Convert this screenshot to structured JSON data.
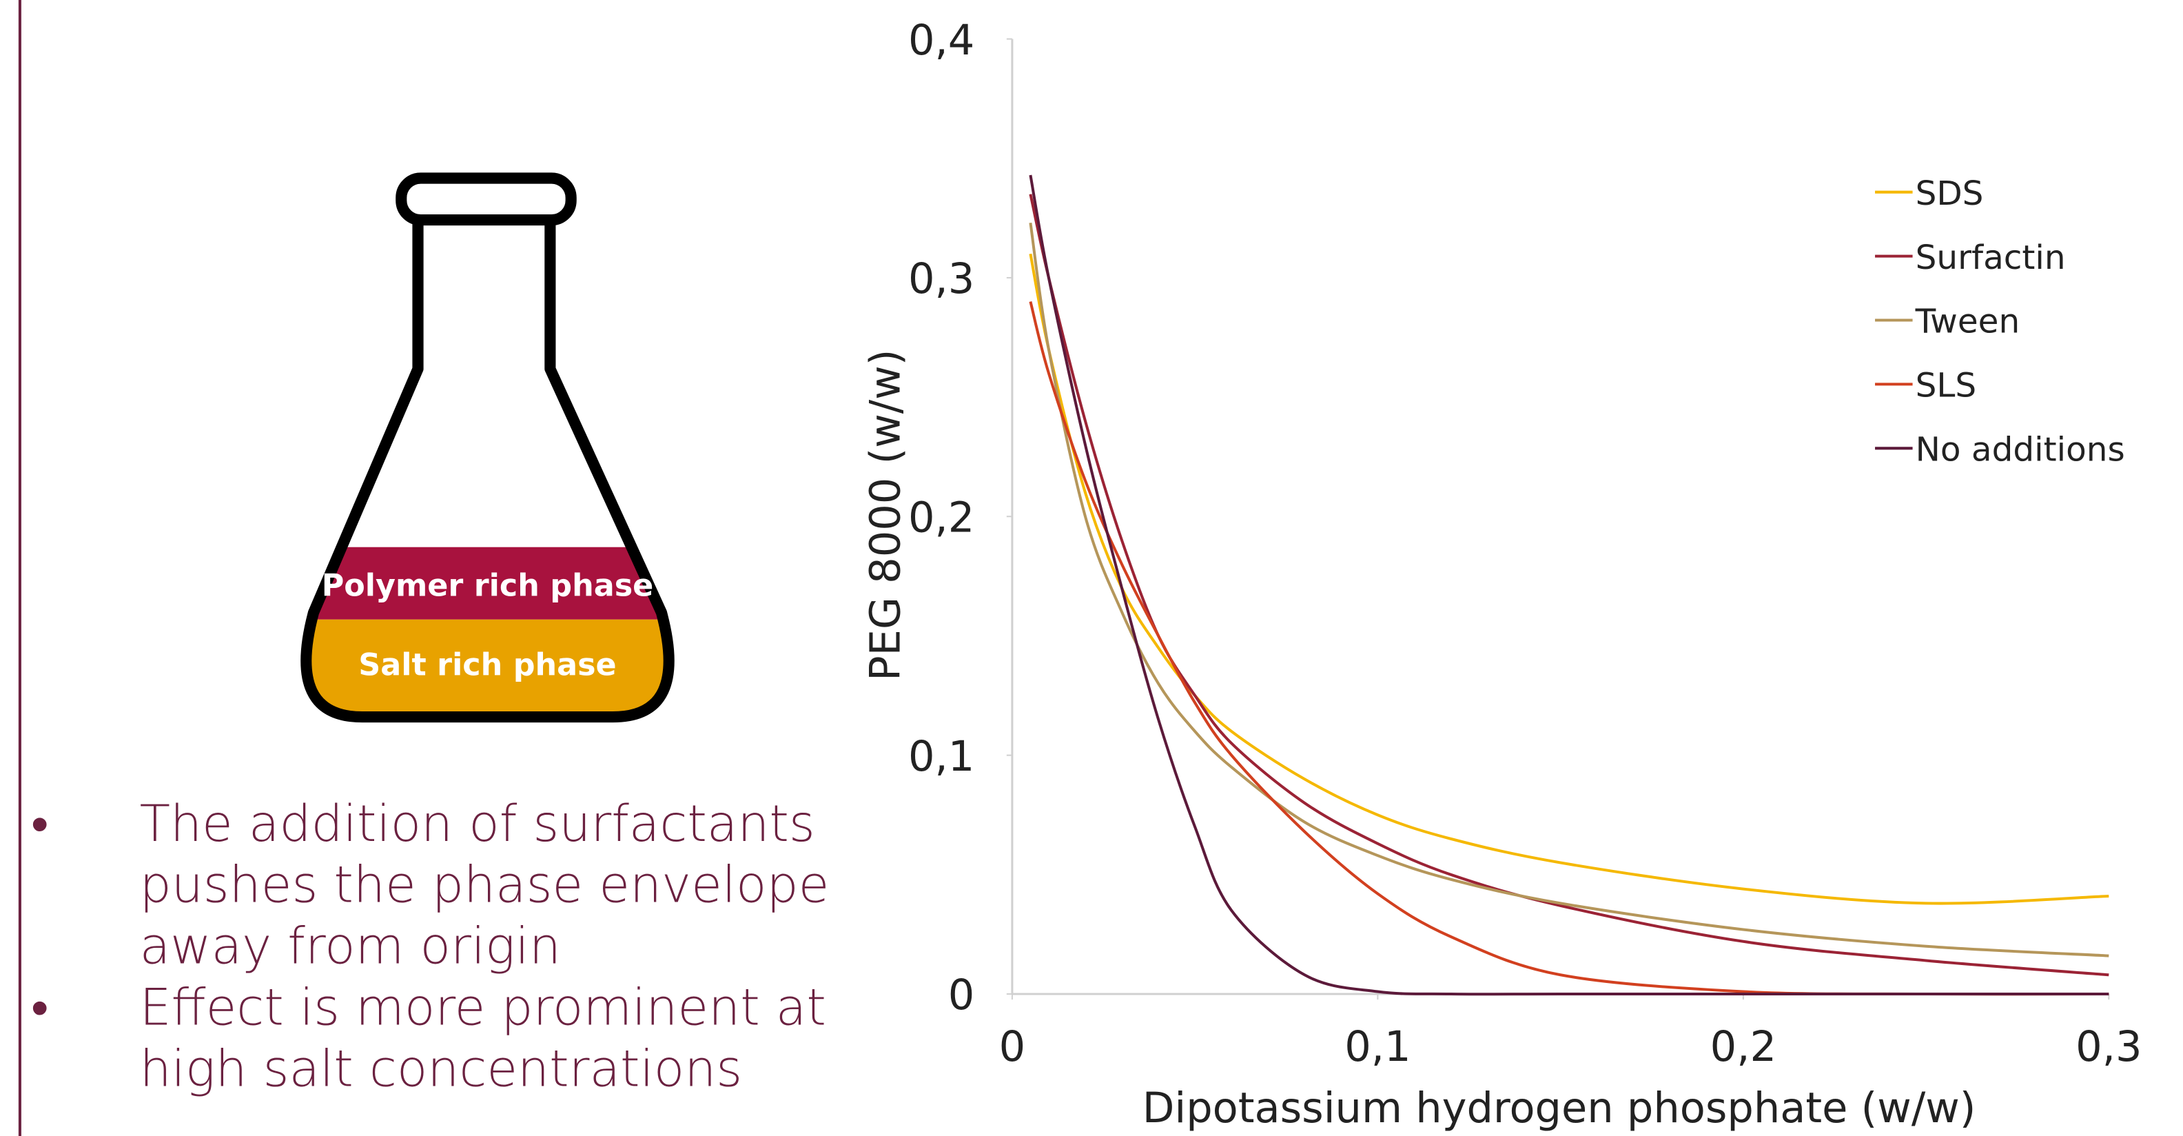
{
  "chart_data": {
    "type": "line",
    "x_label": "Dipotassium hydrogen phosphate (w/w)",
    "y_label": "PEG 8000  (w/w)",
    "x": [
      0.005,
      0.01,
      0.02,
      0.03,
      0.04,
      0.05,
      0.06,
      0.08,
      0.1,
      0.12,
      0.15,
      0.2,
      0.25,
      0.3
    ],
    "series": [
      {
        "name": "SDS",
        "color": "#f5b800",
        "values": [
          0.31,
          0.27,
          0.21,
          0.17,
          0.145,
          0.125,
          0.11,
          0.09,
          0.075,
          0.065,
          0.055,
          0.044,
          0.038,
          0.041
        ]
      },
      {
        "name": "Surfactin",
        "color": "#9b2335",
        "values": [
          0.335,
          0.3,
          0.24,
          0.19,
          0.15,
          0.125,
          0.105,
          0.08,
          0.063,
          0.05,
          0.037,
          0.022,
          0.014,
          0.008
        ]
      },
      {
        "name": "Tween",
        "color": "#b5965a",
        "values": [
          0.323,
          0.27,
          0.2,
          0.16,
          0.13,
          0.11,
          0.095,
          0.072,
          0.058,
          0.048,
          0.038,
          0.027,
          0.02,
          0.016
        ]
      },
      {
        "name": "SLS",
        "color": "#d2401f",
        "values": [
          0.29,
          0.26,
          0.215,
          0.18,
          0.15,
          0.122,
          0.1,
          0.068,
          0.042,
          0.024,
          0.008,
          0.001,
          0,
          0
        ]
      },
      {
        "name": "No additions",
        "color": "#5c1a3a",
        "values": [
          0.343,
          0.3,
          0.23,
          0.17,
          0.115,
          0.07,
          0.035,
          0.008,
          0.001,
          0,
          0,
          0,
          0,
          0
        ]
      }
    ],
    "xlim": [
      0,
      0.3
    ],
    "xticks": [
      0,
      {
        "value": 0.1,
        "label": "0,1"
      },
      {
        "value": 0.2,
        "label": "0,2"
      },
      {
        "value": 0.3,
        "label": "0,3"
      }
    ],
    "ylim": [
      0,
      0.4
    ],
    "yticks": [
      0,
      {
        "value": 0.1,
        "label": "0,1"
      },
      {
        "value": 0.2,
        "label": "0,2"
      },
      {
        "value": 0.3,
        "label": "0,3"
      },
      {
        "value": 0.4,
        "label": "0,4"
      }
    ],
    "grid": false,
    "legend": "top-right"
  },
  "flask": {
    "top_phase": "Polymer rich phase",
    "bottom_phase": "Salt rich phase"
  },
  "bullets": [
    [
      "The addition of surfactants",
      "pushes the phase envelope",
      "away from origin"
    ],
    [
      "Effect is more prominent at",
      "high salt concentrations"
    ]
  ]
}
